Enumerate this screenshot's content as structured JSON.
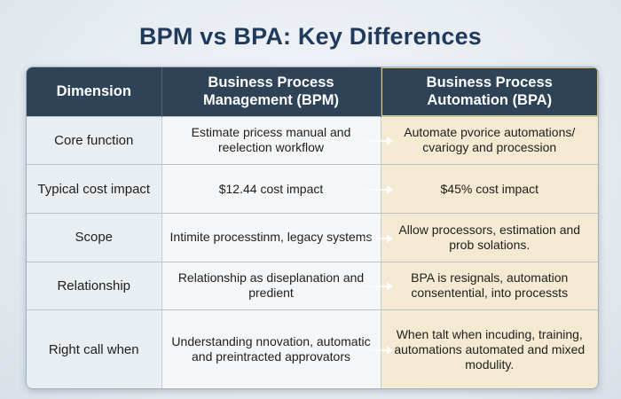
{
  "title": "BPM vs BPA: Key Differences",
  "table": {
    "headers": {
      "dimension": "Dimension",
      "bpm": "Business Process Management (BPM)",
      "bpa": "Business Process Automation (BPA)"
    },
    "rows": [
      {
        "dimension": "Core function",
        "bpm": "Estimate pricess manual and reelection workflow",
        "bpa": "Automate pvorice automations/ cvariogy and procession"
      },
      {
        "dimension": "Typical cost impact",
        "bpm": "$12.44 cost impact",
        "bpa": "$45% cost impact"
      },
      {
        "dimension": "Scope",
        "bpm": "Intimite processtinm, legacy systems",
        "bpa": "Allow processors, estimation and prob solations."
      },
      {
        "dimension": "Relationship",
        "bpm": "Relationship as diseplanation and predient",
        "bpa": "BPA is resignals, automation consentential, into processts"
      },
      {
        "dimension": "Right call when",
        "bpm": "Understanding nnovation, automatic and preintracted approvators",
        "bpa": "When talt when incuding, training, automations automated and mixed modulity."
      }
    ]
  }
}
